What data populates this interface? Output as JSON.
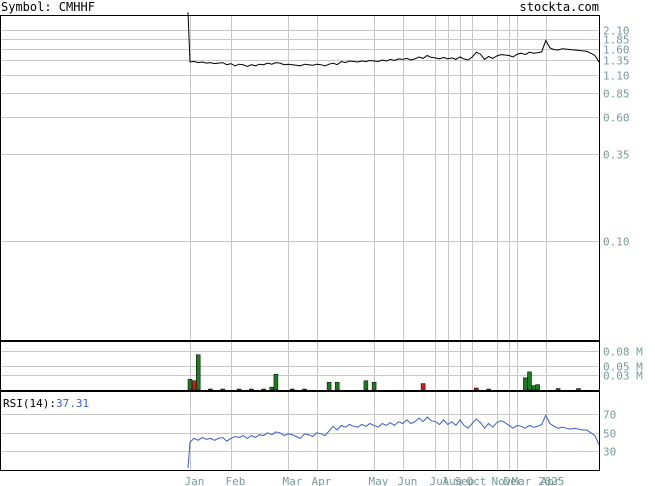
{
  "header": {
    "symbol_label": "Symbol: CMHHF",
    "site_label": "stockta.com"
  },
  "colors": {
    "grid": "#c8c8c8",
    "frame": "#000000",
    "axis_text": "#7a9a9a",
    "price_line": "#000000",
    "rsi_line": "#3a5fcd",
    "vol_up": "#1f7a1f",
    "vol_down": "#d01a1a",
    "rsi_value": "#3a5fcd"
  },
  "chart_data": [
    {
      "type": "line",
      "name": "price",
      "scale": "log",
      "ylim": [
        0.024,
        2.6
      ],
      "y_ticks": [
        2.1,
        1.85,
        1.6,
        1.35,
        1.1,
        0.85,
        0.6,
        0.35,
        0.1
      ],
      "y_tick_labels": [
        "2.10",
        "1.85",
        "1.60",
        "1.35",
        "1.10",
        "0.85",
        "0.60",
        "0.35",
        "0.10"
      ],
      "x_index_range": [
        0,
        100
      ],
      "x_ticks": [
        {
          "label": "Jan",
          "i": 0
        },
        {
          "label": "Feb",
          "i": 10
        },
        {
          "label": "Mar",
          "i": 24
        },
        {
          "label": "Apr",
          "i": 31
        },
        {
          "label": "May",
          "i": 45
        },
        {
          "label": "Jun",
          "i": 52
        },
        {
          "label": "Jul",
          "i": 60
        },
        {
          "label": "Aug",
          "i": 63
        },
        {
          "label": "Sep",
          "i": 66
        },
        {
          "label": "Oct",
          "i": 69
        },
        {
          "label": "Nov",
          "i": 75
        },
        {
          "label": "Dec",
          "i": 78
        },
        {
          "label": "Mar 2025",
          "i": 80
        },
        {
          "label": "Apr",
          "i": 87
        }
      ],
      "values": [
        {
          "i": -0.5,
          "y": 2.7
        },
        {
          "i": 0,
          "y": 1.32
        },
        {
          "i": 1,
          "y": 1.33
        },
        {
          "i": 2,
          "y": 1.31
        },
        {
          "i": 3,
          "y": 1.32
        },
        {
          "i": 4,
          "y": 1.3
        },
        {
          "i": 5,
          "y": 1.31
        },
        {
          "i": 6,
          "y": 1.29
        },
        {
          "i": 7,
          "y": 1.3
        },
        {
          "i": 8,
          "y": 1.31
        },
        {
          "i": 9,
          "y": 1.27
        },
        {
          "i": 10,
          "y": 1.29
        },
        {
          "i": 11,
          "y": 1.25
        },
        {
          "i": 12,
          "y": 1.28
        },
        {
          "i": 13,
          "y": 1.27
        },
        {
          "i": 14,
          "y": 1.24
        },
        {
          "i": 15,
          "y": 1.27
        },
        {
          "i": 16,
          "y": 1.25
        },
        {
          "i": 17,
          "y": 1.28
        },
        {
          "i": 18,
          "y": 1.27
        },
        {
          "i": 19,
          "y": 1.3
        },
        {
          "i": 20,
          "y": 1.28
        },
        {
          "i": 21,
          "y": 1.31
        },
        {
          "i": 22,
          "y": 1.3
        },
        {
          "i": 23,
          "y": 1.27
        },
        {
          "i": 24,
          "y": 1.28
        },
        {
          "i": 25,
          "y": 1.27
        },
        {
          "i": 26,
          "y": 1.26
        },
        {
          "i": 27,
          "y": 1.25
        },
        {
          "i": 28,
          "y": 1.28
        },
        {
          "i": 29,
          "y": 1.27
        },
        {
          "i": 30,
          "y": 1.26
        },
        {
          "i": 31,
          "y": 1.28
        },
        {
          "i": 32,
          "y": 1.27
        },
        {
          "i": 33,
          "y": 1.25
        },
        {
          "i": 34,
          "y": 1.28
        },
        {
          "i": 35,
          "y": 1.3
        },
        {
          "i": 36,
          "y": 1.27
        },
        {
          "i": 37,
          "y": 1.33
        },
        {
          "i": 38,
          "y": 1.31
        },
        {
          "i": 39,
          "y": 1.34
        },
        {
          "i": 40,
          "y": 1.33
        },
        {
          "i": 41,
          "y": 1.32
        },
        {
          "i": 42,
          "y": 1.34
        },
        {
          "i": 43,
          "y": 1.33
        },
        {
          "i": 44,
          "y": 1.35
        },
        {
          "i": 45,
          "y": 1.34
        },
        {
          "i": 46,
          "y": 1.33
        },
        {
          "i": 47,
          "y": 1.36
        },
        {
          "i": 48,
          "y": 1.34
        },
        {
          "i": 49,
          "y": 1.37
        },
        {
          "i": 50,
          "y": 1.35
        },
        {
          "i": 51,
          "y": 1.38
        },
        {
          "i": 52,
          "y": 1.37
        },
        {
          "i": 53,
          "y": 1.39
        },
        {
          "i": 54,
          "y": 1.36
        },
        {
          "i": 55,
          "y": 1.38
        },
        {
          "i": 56,
          "y": 1.42
        },
        {
          "i": 57,
          "y": 1.39
        },
        {
          "i": 58,
          "y": 1.45
        },
        {
          "i": 59,
          "y": 1.41
        },
        {
          "i": 60,
          "y": 1.4
        },
        {
          "i": 61,
          "y": 1.38
        },
        {
          "i": 62,
          "y": 1.41
        },
        {
          "i": 63,
          "y": 1.38
        },
        {
          "i": 64,
          "y": 1.4
        },
        {
          "i": 65,
          "y": 1.37
        },
        {
          "i": 66,
          "y": 1.42
        },
        {
          "i": 67,
          "y": 1.38
        },
        {
          "i": 68,
          "y": 1.36
        },
        {
          "i": 69,
          "y": 1.42
        },
        {
          "i": 70,
          "y": 1.52
        },
        {
          "i": 71,
          "y": 1.48
        },
        {
          "i": 72,
          "y": 1.37
        },
        {
          "i": 73,
          "y": 1.43
        },
        {
          "i": 74,
          "y": 1.39
        },
        {
          "i": 75,
          "y": 1.44
        },
        {
          "i": 76,
          "y": 1.47
        },
        {
          "i": 77,
          "y": 1.46
        },
        {
          "i": 78,
          "y": 1.45
        },
        {
          "i": 79,
          "y": 1.42
        },
        {
          "i": 80,
          "y": 1.48
        },
        {
          "i": 81,
          "y": 1.5
        },
        {
          "i": 82,
          "y": 1.47
        },
        {
          "i": 83,
          "y": 1.52
        },
        {
          "i": 84,
          "y": 1.5
        },
        {
          "i": 85,
          "y": 1.51
        },
        {
          "i": 86,
          "y": 1.53
        },
        {
          "i": 87,
          "y": 1.8
        },
        {
          "i": 88,
          "y": 1.62
        },
        {
          "i": 89,
          "y": 1.58
        },
        {
          "i": 90,
          "y": 1.57
        },
        {
          "i": 91,
          "y": 1.6
        },
        {
          "i": 92,
          "y": 1.59
        },
        {
          "i": 93,
          "y": 1.58
        },
        {
          "i": 94,
          "y": 1.57
        },
        {
          "i": 95,
          "y": 1.56
        },
        {
          "i": 96,
          "y": 1.55
        },
        {
          "i": 97,
          "y": 1.54
        },
        {
          "i": 98,
          "y": 1.5
        },
        {
          "i": 99,
          "y": 1.45
        },
        {
          "i": 100,
          "y": 1.32
        }
      ]
    },
    {
      "type": "bar",
      "name": "volume",
      "unit": "M",
      "ylim": [
        0,
        0.1
      ],
      "y_ticks": [
        0.08,
        0.05,
        0.03
      ],
      "y_tick_labels": [
        "0.08 M",
        "0.05 M",
        "0.03 M"
      ],
      "bars": [
        {
          "i": 0,
          "value": 0.022,
          "dir": "up"
        },
        {
          "i": 1,
          "value": 0.019,
          "dir": "down"
        },
        {
          "i": 2,
          "value": 0.072,
          "dir": "up"
        },
        {
          "i": 5,
          "value": 0.002,
          "dir": "down"
        },
        {
          "i": 8,
          "value": 0.002,
          "dir": "up"
        },
        {
          "i": 12,
          "value": 0.002,
          "dir": "down"
        },
        {
          "i": 15,
          "value": 0.002,
          "dir": "down"
        },
        {
          "i": 18,
          "value": 0.002,
          "dir": "up"
        },
        {
          "i": 20,
          "value": 0.006,
          "dir": "up"
        },
        {
          "i": 21,
          "value": 0.032,
          "dir": "up"
        },
        {
          "i": 25,
          "value": 0.002,
          "dir": "down"
        },
        {
          "i": 28,
          "value": 0.002,
          "dir": "up"
        },
        {
          "i": 34,
          "value": 0.016,
          "dir": "up"
        },
        {
          "i": 36,
          "value": 0.016,
          "dir": "up"
        },
        {
          "i": 43,
          "value": 0.019,
          "dir": "up"
        },
        {
          "i": 45,
          "value": 0.016,
          "dir": "up"
        },
        {
          "i": 57,
          "value": 0.013,
          "dir": "down"
        },
        {
          "i": 70,
          "value": 0.004,
          "dir": "down"
        },
        {
          "i": 73,
          "value": 0.002,
          "dir": "up"
        },
        {
          "i": 82,
          "value": 0.025,
          "dir": "up"
        },
        {
          "i": 83,
          "value": 0.037,
          "dir": "up"
        },
        {
          "i": 84,
          "value": 0.009,
          "dir": "up"
        },
        {
          "i": 85,
          "value": 0.011,
          "dir": "up"
        },
        {
          "i": 90,
          "value": 0.003,
          "dir": "up"
        },
        {
          "i": 95,
          "value": 0.003,
          "dir": "up"
        }
      ]
    },
    {
      "type": "line",
      "name": "rsi",
      "label_prefix": "RSI(14):",
      "value_label": "37.31",
      "ylim": [
        10,
        95
      ],
      "y_ticks": [
        70,
        50,
        30
      ],
      "y_tick_labels": [
        "70",
        "50",
        "30"
      ],
      "values": [
        {
          "i": -0.5,
          "y": 12
        },
        {
          "i": 0,
          "y": 40
        },
        {
          "i": 1,
          "y": 44
        },
        {
          "i": 2,
          "y": 42
        },
        {
          "i": 3,
          "y": 45
        },
        {
          "i": 4,
          "y": 43
        },
        {
          "i": 5,
          "y": 44
        },
        {
          "i": 6,
          "y": 42
        },
        {
          "i": 7,
          "y": 44
        },
        {
          "i": 8,
          "y": 45
        },
        {
          "i": 9,
          "y": 41
        },
        {
          "i": 10,
          "y": 44
        },
        {
          "i": 11,
          "y": 46
        },
        {
          "i": 12,
          "y": 45
        },
        {
          "i": 13,
          "y": 47
        },
        {
          "i": 14,
          "y": 44
        },
        {
          "i": 15,
          "y": 47
        },
        {
          "i": 16,
          "y": 45
        },
        {
          "i": 17,
          "y": 48
        },
        {
          "i": 18,
          "y": 47
        },
        {
          "i": 19,
          "y": 50
        },
        {
          "i": 20,
          "y": 48
        },
        {
          "i": 21,
          "y": 51
        },
        {
          "i": 22,
          "y": 50
        },
        {
          "i": 23,
          "y": 47
        },
        {
          "i": 24,
          "y": 49
        },
        {
          "i": 25,
          "y": 48
        },
        {
          "i": 26,
          "y": 46
        },
        {
          "i": 27,
          "y": 44
        },
        {
          "i": 28,
          "y": 49
        },
        {
          "i": 29,
          "y": 48
        },
        {
          "i": 30,
          "y": 46
        },
        {
          "i": 31,
          "y": 50
        },
        {
          "i": 32,
          "y": 49
        },
        {
          "i": 33,
          "y": 47
        },
        {
          "i": 34,
          "y": 52
        },
        {
          "i": 35,
          "y": 57
        },
        {
          "i": 36,
          "y": 53
        },
        {
          "i": 37,
          "y": 58
        },
        {
          "i": 38,
          "y": 56
        },
        {
          "i": 39,
          "y": 59
        },
        {
          "i": 40,
          "y": 57
        },
        {
          "i": 41,
          "y": 56
        },
        {
          "i": 42,
          "y": 59
        },
        {
          "i": 43,
          "y": 57
        },
        {
          "i": 44,
          "y": 60
        },
        {
          "i": 45,
          "y": 58
        },
        {
          "i": 46,
          "y": 56
        },
        {
          "i": 47,
          "y": 60
        },
        {
          "i": 48,
          "y": 58
        },
        {
          "i": 49,
          "y": 61
        },
        {
          "i": 50,
          "y": 58
        },
        {
          "i": 51,
          "y": 62
        },
        {
          "i": 52,
          "y": 60
        },
        {
          "i": 53,
          "y": 64
        },
        {
          "i": 54,
          "y": 60
        },
        {
          "i": 55,
          "y": 62
        },
        {
          "i": 56,
          "y": 66
        },
        {
          "i": 57,
          "y": 62
        },
        {
          "i": 58,
          "y": 67
        },
        {
          "i": 59,
          "y": 63
        },
        {
          "i": 60,
          "y": 62
        },
        {
          "i": 61,
          "y": 59
        },
        {
          "i": 62,
          "y": 64
        },
        {
          "i": 63,
          "y": 59
        },
        {
          "i": 64,
          "y": 62
        },
        {
          "i": 65,
          "y": 58
        },
        {
          "i": 66,
          "y": 64
        },
        {
          "i": 67,
          "y": 58
        },
        {
          "i": 68,
          "y": 55
        },
        {
          "i": 69,
          "y": 60
        },
        {
          "i": 70,
          "y": 65
        },
        {
          "i": 71,
          "y": 61
        },
        {
          "i": 72,
          "y": 55
        },
        {
          "i": 73,
          "y": 60
        },
        {
          "i": 74,
          "y": 56
        },
        {
          "i": 75,
          "y": 61
        },
        {
          "i": 76,
          "y": 63
        },
        {
          "i": 77,
          "y": 61
        },
        {
          "i": 78,
          "y": 58
        },
        {
          "i": 79,
          "y": 55
        },
        {
          "i": 80,
          "y": 58
        },
        {
          "i": 81,
          "y": 57
        },
        {
          "i": 82,
          "y": 55
        },
        {
          "i": 83,
          "y": 58
        },
        {
          "i": 84,
          "y": 56
        },
        {
          "i": 85,
          "y": 57
        },
        {
          "i": 86,
          "y": 59
        },
        {
          "i": 87,
          "y": 69
        },
        {
          "i": 88,
          "y": 60
        },
        {
          "i": 89,
          "y": 57
        },
        {
          "i": 90,
          "y": 55
        },
        {
          "i": 91,
          "y": 56
        },
        {
          "i": 92,
          "y": 55
        },
        {
          "i": 93,
          "y": 54
        },
        {
          "i": 94,
          "y": 55
        },
        {
          "i": 95,
          "y": 54
        },
        {
          "i": 96,
          "y": 53
        },
        {
          "i": 97,
          "y": 53
        },
        {
          "i": 98,
          "y": 50
        },
        {
          "i": 99,
          "y": 47
        },
        {
          "i": 100,
          "y": 37.31
        }
      ]
    }
  ]
}
